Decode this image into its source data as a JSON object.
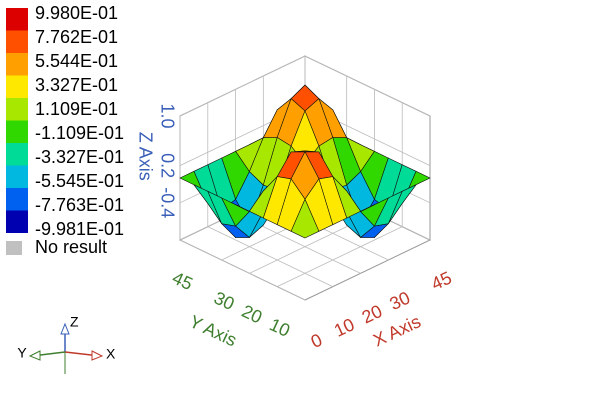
{
  "chart_data": {
    "type": "surface3d",
    "x": [
      0,
      5,
      10,
      15,
      20,
      25,
      30,
      35,
      40,
      45
    ],
    "y": [
      0,
      5,
      10,
      15,
      20,
      25,
      30,
      35,
      40,
      45
    ],
    "z": [
      [
        0,
        0,
        0,
        0,
        0,
        0,
        0,
        0,
        0,
        0
      ],
      [
        0,
        0.41,
        0.63,
        0.56,
        0.22,
        -0.22,
        -0.56,
        -0.63,
        -0.41,
        0
      ],
      [
        0,
        0.63,
        0.96,
        0.85,
        0.33,
        -0.33,
        -0.85,
        -0.96,
        -0.63,
        0
      ],
      [
        0,
        0.56,
        0.85,
        0.76,
        0.3,
        -0.3,
        -0.76,
        -0.85,
        -0.56,
        0
      ],
      [
        0,
        0.22,
        0.33,
        0.3,
        0.12,
        -0.12,
        -0.3,
        -0.33,
        -0.22,
        0
      ],
      [
        0,
        -0.22,
        -0.33,
        -0.3,
        -0.12,
        0.12,
        0.3,
        0.33,
        0.22,
        0
      ],
      [
        0,
        -0.56,
        -0.85,
        -0.76,
        -0.3,
        0.3,
        0.76,
        0.85,
        0.56,
        0
      ],
      [
        0,
        -0.63,
        -0.96,
        -0.85,
        -0.33,
        0.33,
        0.85,
        0.96,
        0.63,
        0
      ],
      [
        0,
        -0.41,
        -0.63,
        -0.56,
        -0.22,
        0.22,
        0.56,
        0.63,
        0.41,
        0
      ],
      [
        0,
        0,
        0,
        0,
        0,
        0,
        0,
        0,
        0,
        0
      ]
    ],
    "xlim": [
      0,
      45
    ],
    "ylim": [
      0,
      45
    ],
    "zlim": [
      -1,
      1
    ],
    "xticks": [
      0,
      10,
      20,
      30,
      45
    ],
    "yticks": [
      10,
      20,
      30,
      45
    ],
    "zticks": [
      {
        "value": 1,
        "label": "1.0"
      },
      0.2,
      -0.4
    ],
    "xlabel": "X Axis",
    "ylabel": "Y Axis",
    "zlabel": "Z Axis",
    "axis_colors": {
      "x": "#c0392b",
      "y": "#3f7f2f",
      "z": "#3a5fb8"
    },
    "grid": true,
    "colorbar": {
      "ticks": [
        {
          "value": 0.998,
          "label": "9.980E-01"
        },
        {
          "value": 0.7762,
          "label": "7.762E-01"
        },
        {
          "value": 0.5544,
          "label": "5.544E-01"
        },
        {
          "value": 0.3327,
          "label": "3.327E-01"
        },
        {
          "value": 0.1109,
          "label": "1.109E-01"
        },
        {
          "value": -0.1109,
          "label": "-1.109E-01"
        },
        {
          "value": -0.3327,
          "label": "-3.327E-01"
        },
        {
          "value": -0.5545,
          "label": "-5.545E-01"
        },
        {
          "value": -0.7763,
          "label": "-7.763E-01"
        },
        {
          "value": -0.9981,
          "label": "-9.981E-01"
        }
      ],
      "colors": [
        "#dd0000",
        "#ff5000",
        "#ffa000",
        "#ffe800",
        "#a8e800",
        "#30d800",
        "#00dc98",
        "#00b8e0",
        "#0060f0",
        "#0000b0"
      ],
      "no_result": {
        "label": "No result",
        "color": "#c0c0c0"
      }
    },
    "triad": [
      "X",
      "Y",
      "Z"
    ]
  }
}
